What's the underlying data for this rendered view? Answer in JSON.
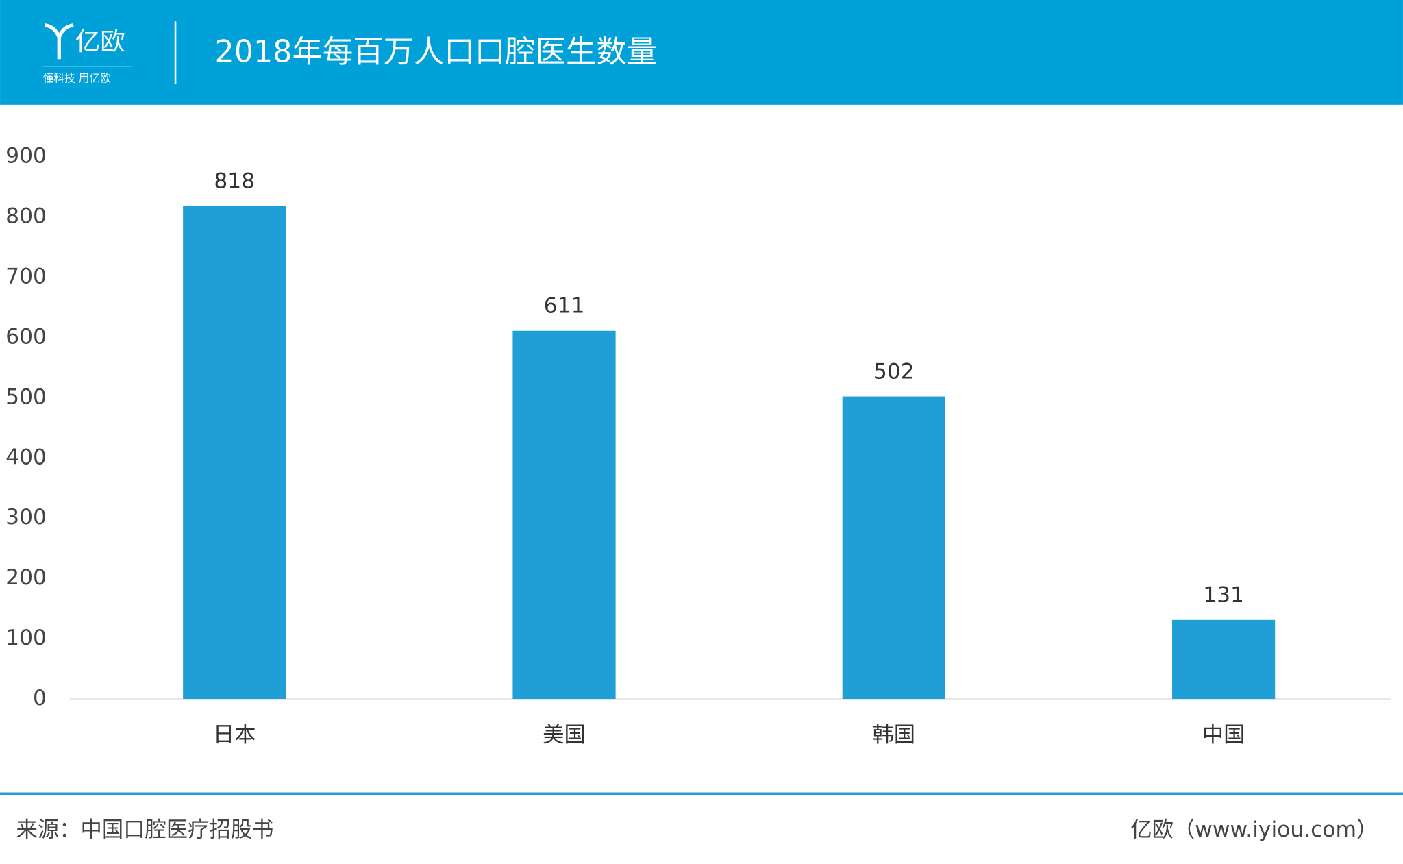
{
  "header": {
    "logo": "亿欧",
    "slogan": "懂科技 用亿欧"
  },
  "chart_data": {
    "type": "bar",
    "title": "2018年每百万人口口腔医生数量",
    "categories": [
      "日本",
      "美国",
      "韩国",
      "中国"
    ],
    "values": [
      818,
      611,
      502,
      131
    ],
    "color": "#1f9fd5",
    "ylim": [
      0,
      900
    ],
    "yticks": [
      0,
      100,
      200,
      300,
      400,
      500,
      600,
      700,
      800,
      900
    ],
    "grid": false,
    "source": "来源：中国口腔医疗招股书",
    "credit": "亿欧（www.iyiou.com）"
  }
}
